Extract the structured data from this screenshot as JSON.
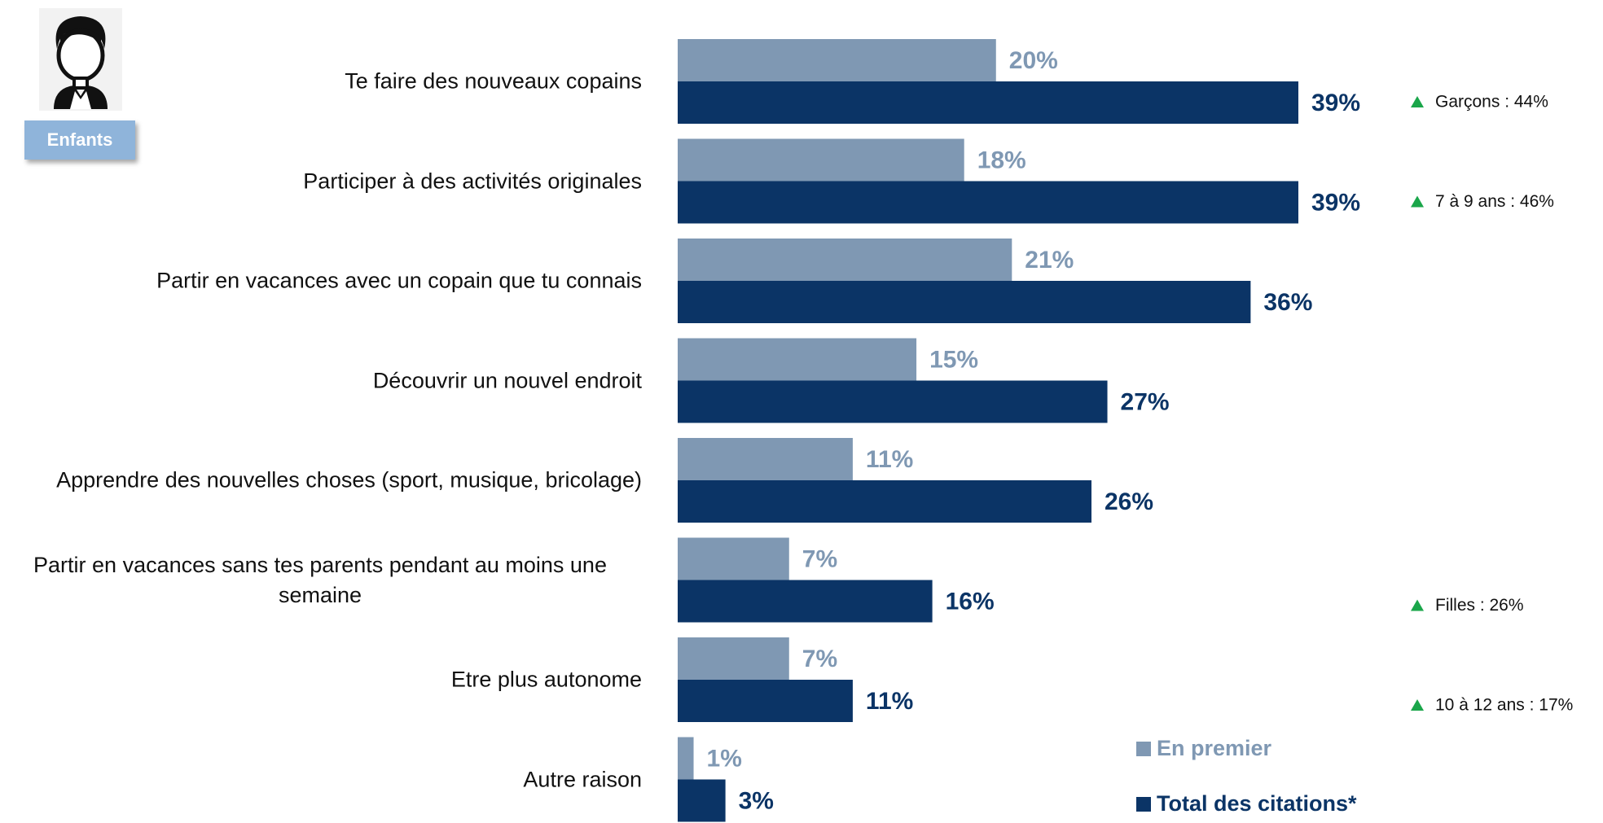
{
  "chart_data": {
    "type": "bar",
    "orientation": "horizontal",
    "badge": "Enfants",
    "categories": [
      "Te faire des nouveaux copains",
      "Participer à des activités originales",
      "Partir en vacances avec un copain que tu connais",
      "Découvrir un nouvel endroit",
      "Apprendre des nouvelles choses (sport, musique, bricolage)",
      "Partir en vacances sans tes parents pendant au moins une semaine",
      "Etre plus autonome",
      "Autre raison"
    ],
    "series": [
      {
        "name": "En premier",
        "color": "#7f98b3",
        "values": [
          20,
          18,
          21,
          15,
          11,
          7,
          7,
          1
        ],
        "value_labels": [
          "20%",
          "18%",
          "21%",
          "15%",
          "11%",
          "7%",
          "7%",
          "1%"
        ]
      },
      {
        "name": "Total des citations*",
        "color": "#0b3466",
        "values": [
          39,
          39,
          36,
          27,
          26,
          16,
          11,
          3
        ],
        "value_labels": [
          "39%",
          "39%",
          "36%",
          "27%",
          "26%",
          "16%",
          "11%",
          "3%"
        ]
      }
    ],
    "annotations": [
      "Garçons : 44%",
      "7 à 9 ans : 46%",
      null,
      null,
      null,
      "Filles : 26%",
      "10 à 12 ans : 17%",
      null
    ],
    "annotation_color": "#1aa64a"
  }
}
